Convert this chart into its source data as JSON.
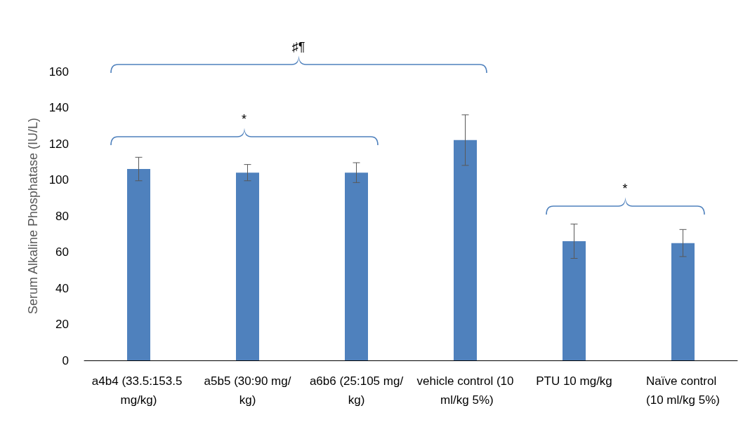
{
  "chart_data": {
    "type": "bar",
    "ylabel": "Serum Alkaline Phosphatase (IU/L)",
    "categories": [
      "a4b4 (33.5:153.5 mg/kg)",
      "a5b5 (30:90 mg/kg)",
      "a6b6 (25:105 mg/kg)",
      "vehicle control (10 ml/kg 5%)",
      "PTU 10 mg/kg",
      "Naïve control (10 ml/kg 5%)"
    ],
    "values": [
      106,
      104,
      104,
      122,
      66,
      65
    ],
    "errors": [
      6.5,
      4.5,
      5.5,
      14,
      9.5,
      7.5
    ],
    "color": "#4f81bd",
    "ylim": [
      0,
      160
    ],
    "yticks": [
      0,
      20,
      40,
      60,
      80,
      100,
      120,
      140,
      160
    ],
    "grid": false,
    "annotations": [
      "♯¶",
      "*",
      "*"
    ]
  }
}
